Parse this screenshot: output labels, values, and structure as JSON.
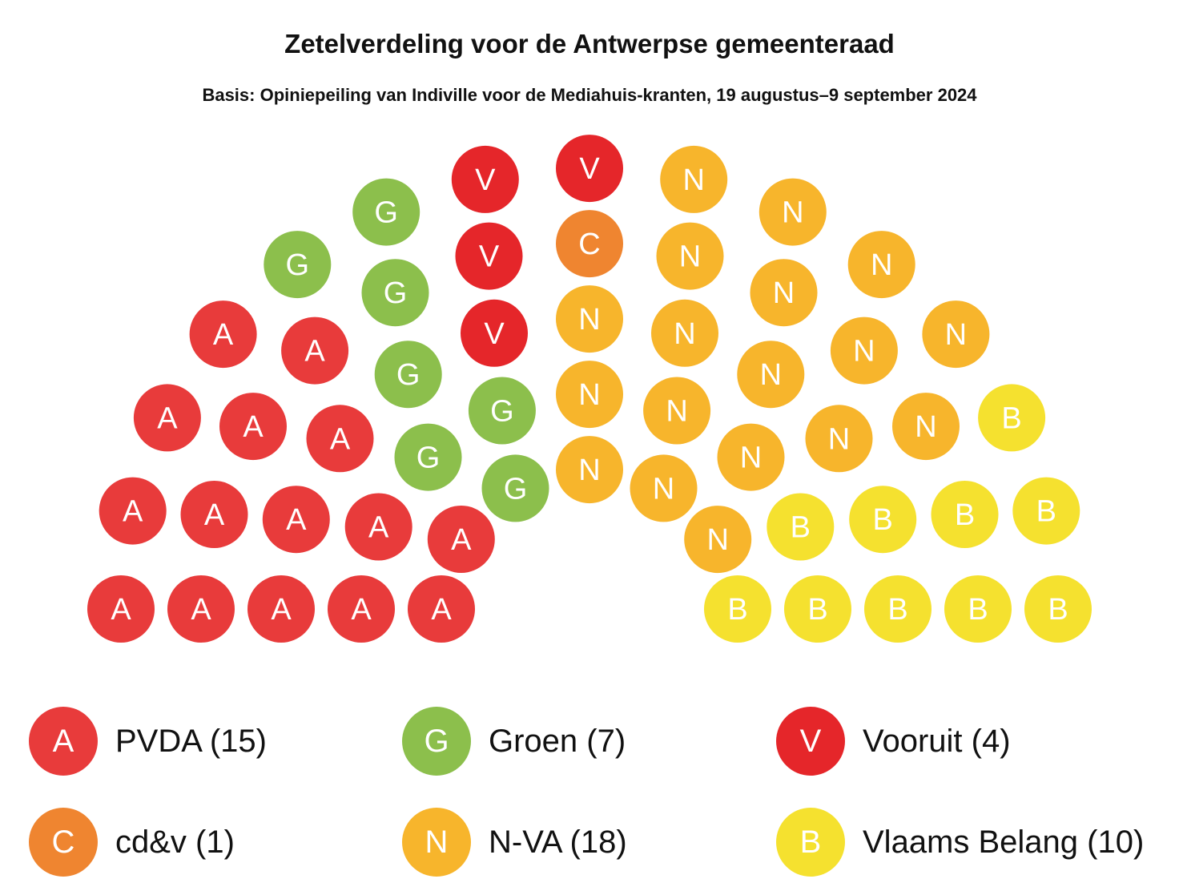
{
  "title": "Zetelverdeling voor de Antwerpse gemeenteraad",
  "subtitle": "Basis: Opiniepeiling van Indiville voor de Mediahuis-kranten, 19 augustus–9 september 2024",
  "chart_data": {
    "type": "parliament",
    "title": "Zetelverdeling voor de Antwerpse gemeenteraad",
    "subtitle": "Basis: Opiniepeiling van Indiville voor de Mediahuis-kranten, 19 augustus–9 september 2024",
    "total_seats": 55,
    "parties": [
      {
        "name": "PVDA",
        "letter": "A",
        "seats": 15,
        "color": "#e83b3b",
        "label": "PVDA (15)"
      },
      {
        "name": "Groen",
        "letter": "G",
        "seats": 7,
        "color": "#8cbf4c",
        "label": "Groen (7)"
      },
      {
        "name": "Vooruit",
        "letter": "V",
        "seats": 4,
        "color": "#e5262a",
        "label": "Vooruit (4)"
      },
      {
        "name": "cd&v",
        "letter": "C",
        "seats": 1,
        "color": "#ef8530",
        "label": "cd&v (1)"
      },
      {
        "name": "N-VA",
        "letter": "N",
        "seats": 18,
        "color": "#f7b52c",
        "label": "N-VA (18)"
      },
      {
        "name": "Vlaams Belang",
        "letter": "B",
        "seats": 10,
        "color": "#f5e12f",
        "label": "Vlaams Belang (10)"
      }
    ]
  },
  "legend": [
    {
      "letter": "A",
      "label": "PVDA (15)",
      "color": "#e83b3b"
    },
    {
      "letter": "G",
      "label": "Groen (7)",
      "color": "#8cbf4c"
    },
    {
      "letter": "V",
      "label": "Vooruit (4)",
      "color": "#e5262a"
    },
    {
      "letter": "C",
      "label": "cd&v (1)",
      "color": "#ef8530"
    },
    {
      "letter": "N",
      "label": "N-VA (18)",
      "color": "#f7b52c"
    },
    {
      "letter": "B",
      "label": "Vlaams Belang (10)",
      "color": "#f5e12f"
    }
  ]
}
